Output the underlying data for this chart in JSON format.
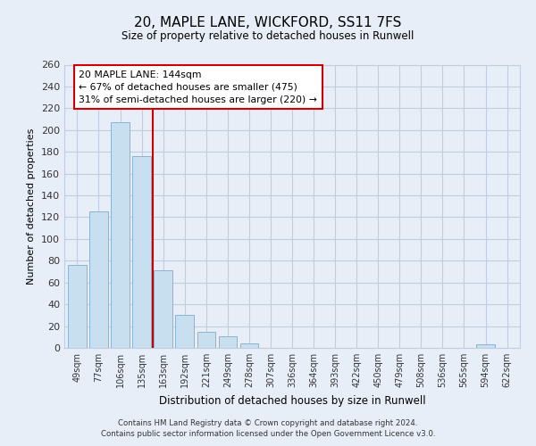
{
  "title": "20, MAPLE LANE, WICKFORD, SS11 7FS",
  "subtitle": "Size of property relative to detached houses in Runwell",
  "xlabel": "Distribution of detached houses by size in Runwell",
  "ylabel": "Number of detached properties",
  "bar_labels": [
    "49sqm",
    "77sqm",
    "106sqm",
    "135sqm",
    "163sqm",
    "192sqm",
    "221sqm",
    "249sqm",
    "278sqm",
    "307sqm",
    "336sqm",
    "364sqm",
    "393sqm",
    "422sqm",
    "450sqm",
    "479sqm",
    "508sqm",
    "536sqm",
    "565sqm",
    "594sqm",
    "622sqm"
  ],
  "bar_values": [
    76,
    125,
    207,
    176,
    71,
    30,
    15,
    11,
    4,
    0,
    0,
    0,
    0,
    0,
    0,
    0,
    0,
    0,
    0,
    3,
    0
  ],
  "bar_color": "#c8dff0",
  "bar_edge_color": "#8ab4d4",
  "vline_x": 3.5,
  "vline_color": "#cc0000",
  "annotation_title": "20 MAPLE LANE: 144sqm",
  "annotation_line1": "← 67% of detached houses are smaller (475)",
  "annotation_line2": "31% of semi-detached houses are larger (220) →",
  "annotation_box_facecolor": "#ffffff",
  "annotation_box_edge": "#cc0000",
  "ylim": [
    0,
    260
  ],
  "yticks": [
    0,
    20,
    40,
    60,
    80,
    100,
    120,
    140,
    160,
    180,
    200,
    220,
    240,
    260
  ],
  "footer1": "Contains HM Land Registry data © Crown copyright and database right 2024.",
  "footer2": "Contains public sector information licensed under the Open Government Licence v3.0.",
  "bg_color": "#e8eef8",
  "plot_bg_color": "#e8eef8",
  "grid_color": "#c0cce0"
}
